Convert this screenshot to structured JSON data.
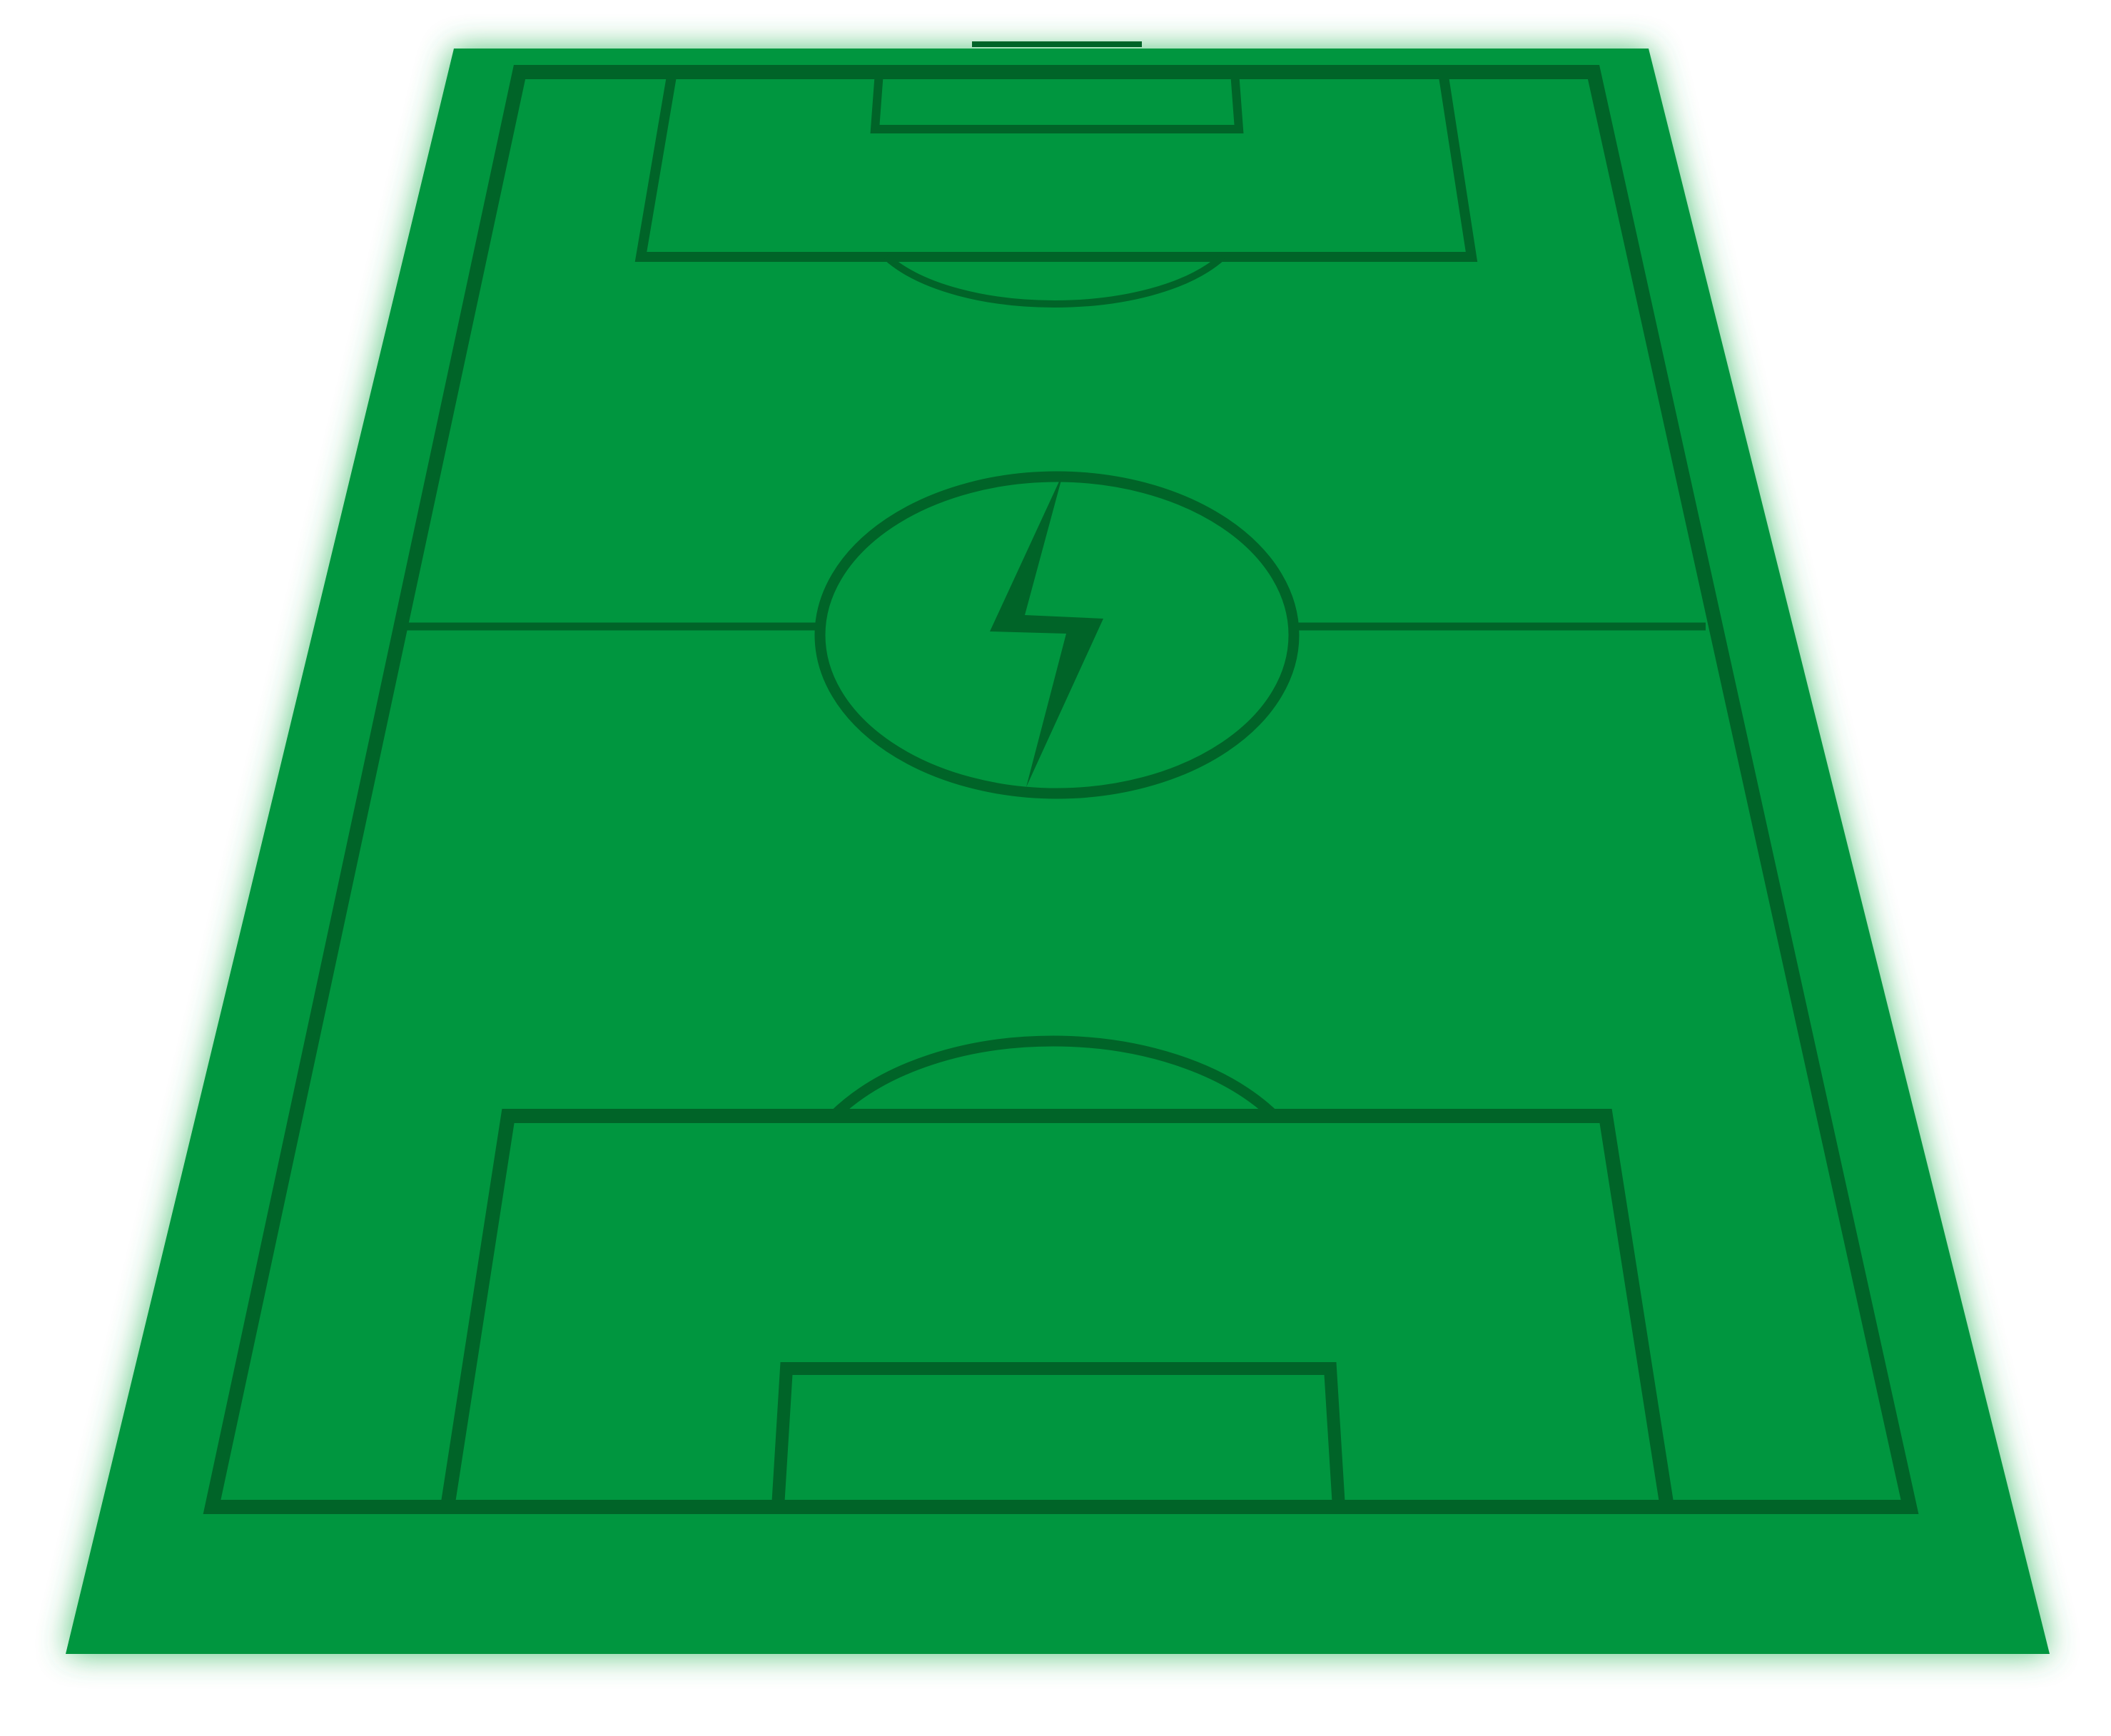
{
  "scene": {
    "subject": "soccer-pitch-perspective",
    "colors": {
      "background": "#ffffff",
      "turf": "#00963f",
      "lines": "#006428",
      "glow": "#33b85f"
    },
    "icon": "lightning-bolt-icon"
  }
}
